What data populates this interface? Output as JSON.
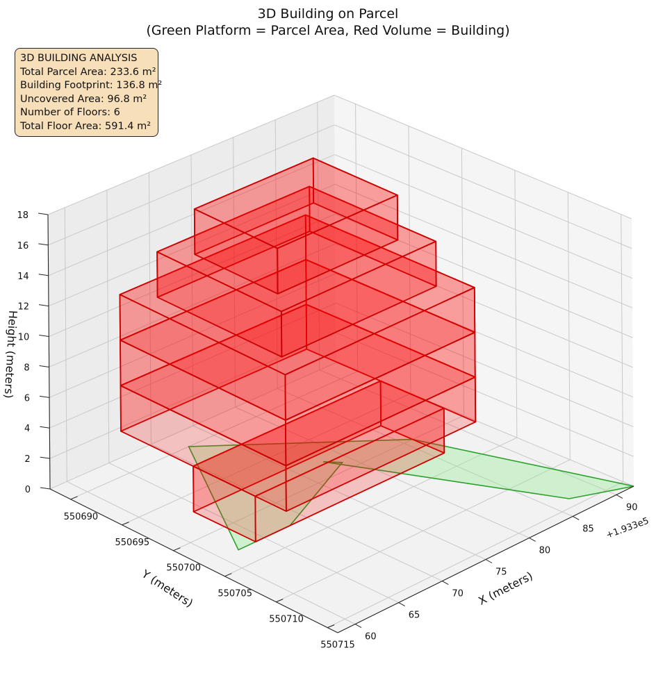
{
  "title_line1": "3D Building on Parcel",
  "title_line2": "(Green Platform = Parcel Area, Red Volume = Building)",
  "info_box": {
    "heading": "3D BUILDING ANALYSIS",
    "parcel_area": "Total Parcel Area: 233.6 m²",
    "footprint": "Building Footprint: 136.8 m²",
    "uncovered": "Uncovered Area: 96.8 m²",
    "floors": "Number of Floors: 6",
    "floor_area": "Total Floor Area: 591.4 m²"
  },
  "chart_data": {
    "type": "3d-box",
    "xlabel": "X (meters)",
    "ylabel": "Y (meters)",
    "zlabel": "Height (meters)",
    "x_offset_label": "+1.933e5",
    "x_ticks": [
      "60",
      "65",
      "70",
      "75",
      "80",
      "85",
      "90"
    ],
    "y_ticks": [
      "550690",
      "550695",
      "550700",
      "550705",
      "550710",
      "550715"
    ],
    "z_ticks": [
      "0",
      "2",
      "4",
      "6",
      "8",
      "10",
      "12",
      "14",
      "16",
      "18"
    ],
    "xlim": [
      58,
      92
    ],
    "ylim": [
      550688,
      550716
    ],
    "zlim": [
      0,
      18
    ],
    "colors": {
      "parcel_fill": "#90ee90",
      "parcel_edge": "#2ca02c",
      "building_fill": "#ff0000",
      "building_edge": "#cc0000"
    },
    "parcel_polygon": [
      [
        62,
        550703
      ],
      [
        68,
        550703
      ],
      [
        79,
        550699
      ],
      [
        78,
        550698
      ],
      [
        87,
        550714
      ],
      [
        92,
        550716
      ],
      [
        86,
        550700
      ],
      [
        72,
        550690
      ],
      [
        62,
        550703
      ]
    ],
    "floors": [
      {
        "name": "floor-1",
        "z": [
          0,
          3
        ],
        "x": [
          64,
          86
        ],
        "y": [
          550697,
          550703
        ]
      },
      {
        "name": "floor-2",
        "z": [
          3,
          6
        ],
        "x": [
          64,
          86
        ],
        "y": [
          550690,
          550706
        ]
      },
      {
        "name": "floor-3",
        "z": [
          6,
          9
        ],
        "x": [
          64,
          86
        ],
        "y": [
          550690,
          550706
        ]
      },
      {
        "name": "floor-4",
        "z": [
          9,
          12
        ],
        "x": [
          64,
          86
        ],
        "y": [
          550690,
          550706
        ]
      },
      {
        "name": "floor-5",
        "z": [
          12,
          15
        ],
        "x": [
          66,
          84
        ],
        "y": [
          550692,
          550704
        ]
      },
      {
        "name": "floor-6",
        "z": [
          15,
          18
        ],
        "x": [
          68,
          82
        ],
        "y": [
          550694,
          550702
        ]
      }
    ]
  }
}
